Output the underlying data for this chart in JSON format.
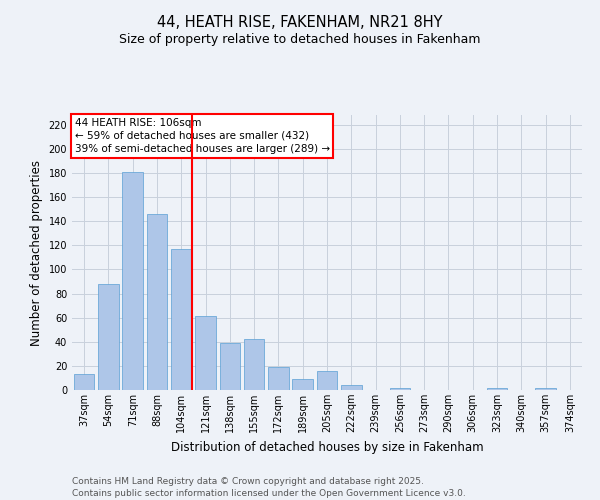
{
  "title": "44, HEATH RISE, FAKENHAM, NR21 8HY",
  "subtitle": "Size of property relative to detached houses in Fakenham",
  "xlabel": "Distribution of detached houses by size in Fakenham",
  "ylabel": "Number of detached properties",
  "categories": [
    "37sqm",
    "54sqm",
    "71sqm",
    "88sqm",
    "104sqm",
    "121sqm",
    "138sqm",
    "155sqm",
    "172sqm",
    "189sqm",
    "205sqm",
    "222sqm",
    "239sqm",
    "256sqm",
    "273sqm",
    "290sqm",
    "306sqm",
    "323sqm",
    "340sqm",
    "357sqm",
    "374sqm"
  ],
  "values": [
    13,
    88,
    181,
    146,
    117,
    61,
    39,
    42,
    19,
    9,
    16,
    4,
    0,
    2,
    0,
    0,
    0,
    2,
    0,
    2,
    0
  ],
  "bar_color": "#aec6e8",
  "bar_edge_color": "#5a9fd4",
  "grid_color": "#c8d0dc",
  "background_color": "#eef2f8",
  "vline_color": "red",
  "vline_index": 4,
  "annotation_text": "44 HEATH RISE: 106sqm\n← 59% of detached houses are smaller (432)\n39% of semi-detached houses are larger (289) →",
  "annotation_box_color": "white",
  "annotation_box_edge": "red",
  "ylim": [
    0,
    228
  ],
  "yticks": [
    0,
    20,
    40,
    60,
    80,
    100,
    120,
    140,
    160,
    180,
    200,
    220
  ],
  "footer": "Contains HM Land Registry data © Crown copyright and database right 2025.\nContains public sector information licensed under the Open Government Licence v3.0.",
  "title_fontsize": 10.5,
  "subtitle_fontsize": 9,
  "axis_label_fontsize": 8.5,
  "tick_fontsize": 7,
  "annotation_fontsize": 7.5,
  "footer_fontsize": 6.5
}
